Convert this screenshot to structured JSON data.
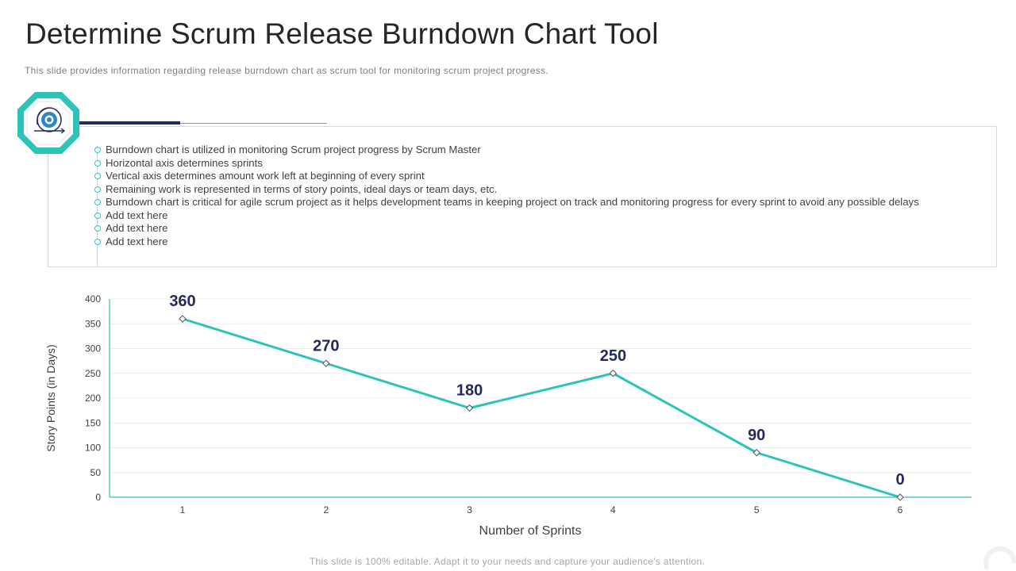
{
  "page": {
    "title": "Determine Scrum Release Burndown Chart Tool",
    "subtitle": "This slide provides  information  regarding  release  burndown  chart as scrum tool for  monitoring scrum project  progress.",
    "footer": "This slide is 100% editable. Adapt it to your needs and capture your audience's attention."
  },
  "badge": {
    "icon": "gear-cycle-icon",
    "color": "#2cc4b9"
  },
  "bullets": [
    "Burndown chart is utilized in monitoring Scrum project progress by Scrum Master",
    "Horizontal axis determines sprints",
    "Vertical axis determines amount work left at beginning of every sprint",
    "Remaining work is represented in terms of story points, ideal days or team days, etc.",
    "Burndown chart is critical for agile scrum project as it helps development teams in keeping project on track and monitoring progress for every sprint to avoid any possible delays",
    "Add text here",
    "Add text here",
    "Add text here"
  ],
  "colors": {
    "accent": "#2cc4b9",
    "navy": "#252a5a"
  },
  "chart_data": {
    "type": "line",
    "x": [
      1,
      2,
      3,
      4,
      5,
      6
    ],
    "values": [
      360,
      270,
      180,
      250,
      90,
      0
    ],
    "data_labels": [
      "360",
      "270",
      "180",
      "250",
      "90",
      "0"
    ],
    "xlabel": "Number of Sprints",
    "ylabel": "Story Points (in Days)",
    "ylim": [
      0,
      400
    ],
    "yticks": [
      0,
      50,
      100,
      150,
      200,
      250,
      300,
      350,
      400
    ],
    "grid": true,
    "line_color": "#2cc4b9",
    "label_color": "#252a5a"
  }
}
